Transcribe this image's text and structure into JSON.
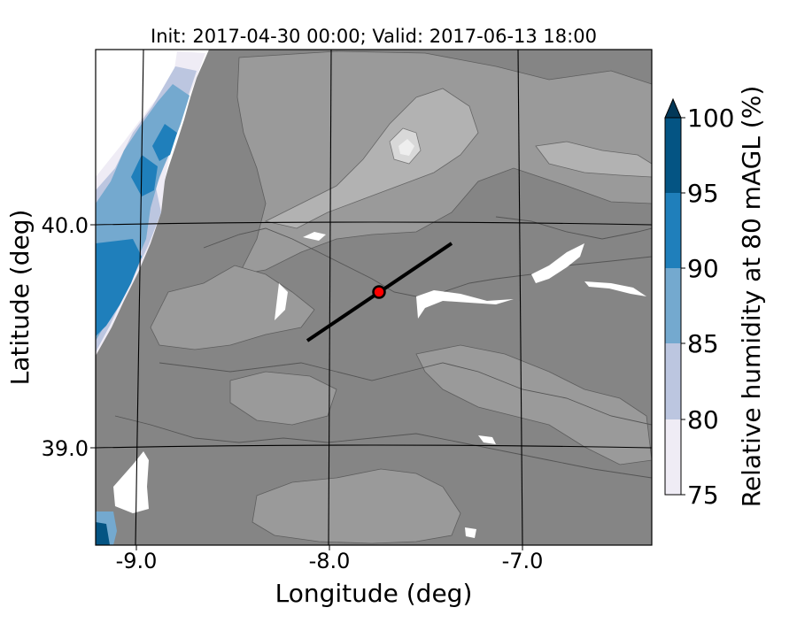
{
  "title": "Init: 2017-04-30 00:00; Valid: 2017-06-13 18:00",
  "map": {
    "x_axis": {
      "label": "Longitude (deg)",
      "ticks": [
        {
          "value": -9.0,
          "label": "-9.0"
        },
        {
          "value": -8.0,
          "label": "-8.0"
        },
        {
          "value": -7.0,
          "label": "-7.0"
        }
      ],
      "range": [
        -9.25,
        -6.38
      ]
    },
    "y_axis": {
      "label": "Latitude (deg)",
      "ticks": [
        {
          "value": 40.0,
          "label": "40.0"
        },
        {
          "value": 39.0,
          "label": "39.0"
        }
      ],
      "range": [
        38.55,
        40.79
      ]
    },
    "cross_section_line": {
      "start": {
        "lon": -8.12,
        "lat": 39.48
      },
      "end": {
        "lon": -7.37,
        "lat": 39.92
      }
    },
    "site_marker": {
      "lon": -7.74,
      "lat": 39.69,
      "color": "#ff0000"
    }
  },
  "colorbar": {
    "label": "Relative humidity at 80 mAGL (%)",
    "levels": [
      {
        "from": 75,
        "to": 80,
        "color": "#efecf5"
      },
      {
        "from": 80,
        "to": 85,
        "color": "#bcc6e0"
      },
      {
        "from": 85,
        "to": 90,
        "color": "#74a9cf"
      },
      {
        "from": 90,
        "to": 95,
        "color": "#1f7fbb"
      },
      {
        "from": 95,
        "to": 100,
        "color": "#045483"
      }
    ],
    "extend_color": "#023858",
    "ticks": [
      "75",
      "80",
      "85",
      "90",
      "95",
      "100"
    ]
  },
  "colors": {
    "terrain_dark": "#858585",
    "terrain_mid": "#9a9a9a",
    "terrain_light": "#b2b2b2",
    "terrain_peak": "#d8d8d8"
  }
}
